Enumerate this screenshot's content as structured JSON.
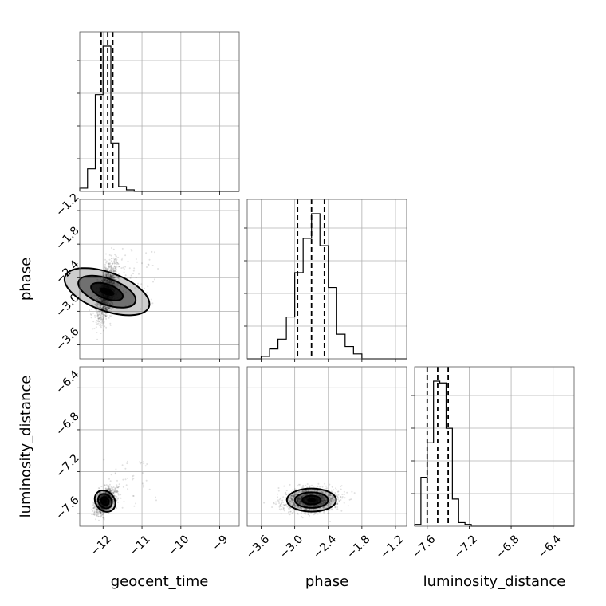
{
  "chart_data": {
    "type": "corner",
    "parameters": [
      "geocent_time",
      "phase",
      "luminosity_distance"
    ],
    "axes": {
      "geocent_time": {
        "label": "geocent_time",
        "range": [
          -12.6,
          -8.5
        ],
        "ticks": [
          -12,
          -11,
          -10,
          -9
        ],
        "tick_labels": [
          "−12",
          "−11",
          "−10",
          "−9"
        ]
      },
      "phase": {
        "label": "phase",
        "range": [
          -3.85,
          -1.0
        ],
        "ticks": [
          -3.6,
          -3.0,
          -2.4,
          -1.8,
          -1.2
        ],
        "tick_labels": [
          "−3.6",
          "−3.0",
          "−2.4",
          "−1.8",
          "−1.2"
        ]
      },
      "luminosity_distance": {
        "label": "luminosity_distance",
        "range": [
          -7.72,
          -6.2
        ],
        "ticks": [
          -7.6,
          -7.2,
          -6.8,
          -6.4
        ],
        "tick_labels": [
          "−7.6",
          "−7.2",
          "−6.8",
          "−6.4"
        ]
      }
    },
    "marginals": {
      "geocent_time": {
        "bin_edges": [
          -12.6,
          -12.4,
          -12.2,
          -12.0,
          -11.8,
          -11.6,
          -11.4,
          -11.2,
          -11.0
        ],
        "counts": [
          2,
          14,
          60,
          90,
          30,
          3,
          1,
          0
        ],
        "quantiles": [
          -12.05,
          -11.88,
          -11.75
        ]
      },
      "phase": {
        "bin_edges": [
          -3.6,
          -3.45,
          -3.3,
          -3.15,
          -3.0,
          -2.85,
          -2.7,
          -2.55,
          -2.4,
          -2.25,
          -2.1,
          -1.95,
          -1.8
        ],
        "counts": [
          1,
          4,
          8,
          17,
          35,
          49,
          59,
          46,
          29,
          10,
          5,
          2
        ],
        "quantiles": [
          -2.95,
          -2.7,
          -2.47
        ]
      },
      "luminosity_distance": {
        "bin_edges": [
          -7.72,
          -7.66,
          -7.6,
          -7.54,
          -7.48,
          -7.42,
          -7.36,
          -7.3,
          -7.24,
          -7.18
        ],
        "counts": [
          1,
          27,
          46,
          80,
          79,
          54,
          15,
          2,
          1
        ],
        "quantiles": [
          -7.6,
          -7.5,
          -7.4
        ]
      }
    },
    "joint": [
      {
        "x": "geocent_time",
        "y": "phase",
        "center": [
          -11.9,
          -2.65
        ]
      },
      {
        "x": "geocent_time",
        "y": "luminosity_distance",
        "center": [
          -11.95,
          -7.48
        ]
      },
      {
        "x": "phase",
        "y": "luminosity_distance",
        "center": [
          -2.7,
          -7.47
        ]
      }
    ],
    "grid": true
  }
}
